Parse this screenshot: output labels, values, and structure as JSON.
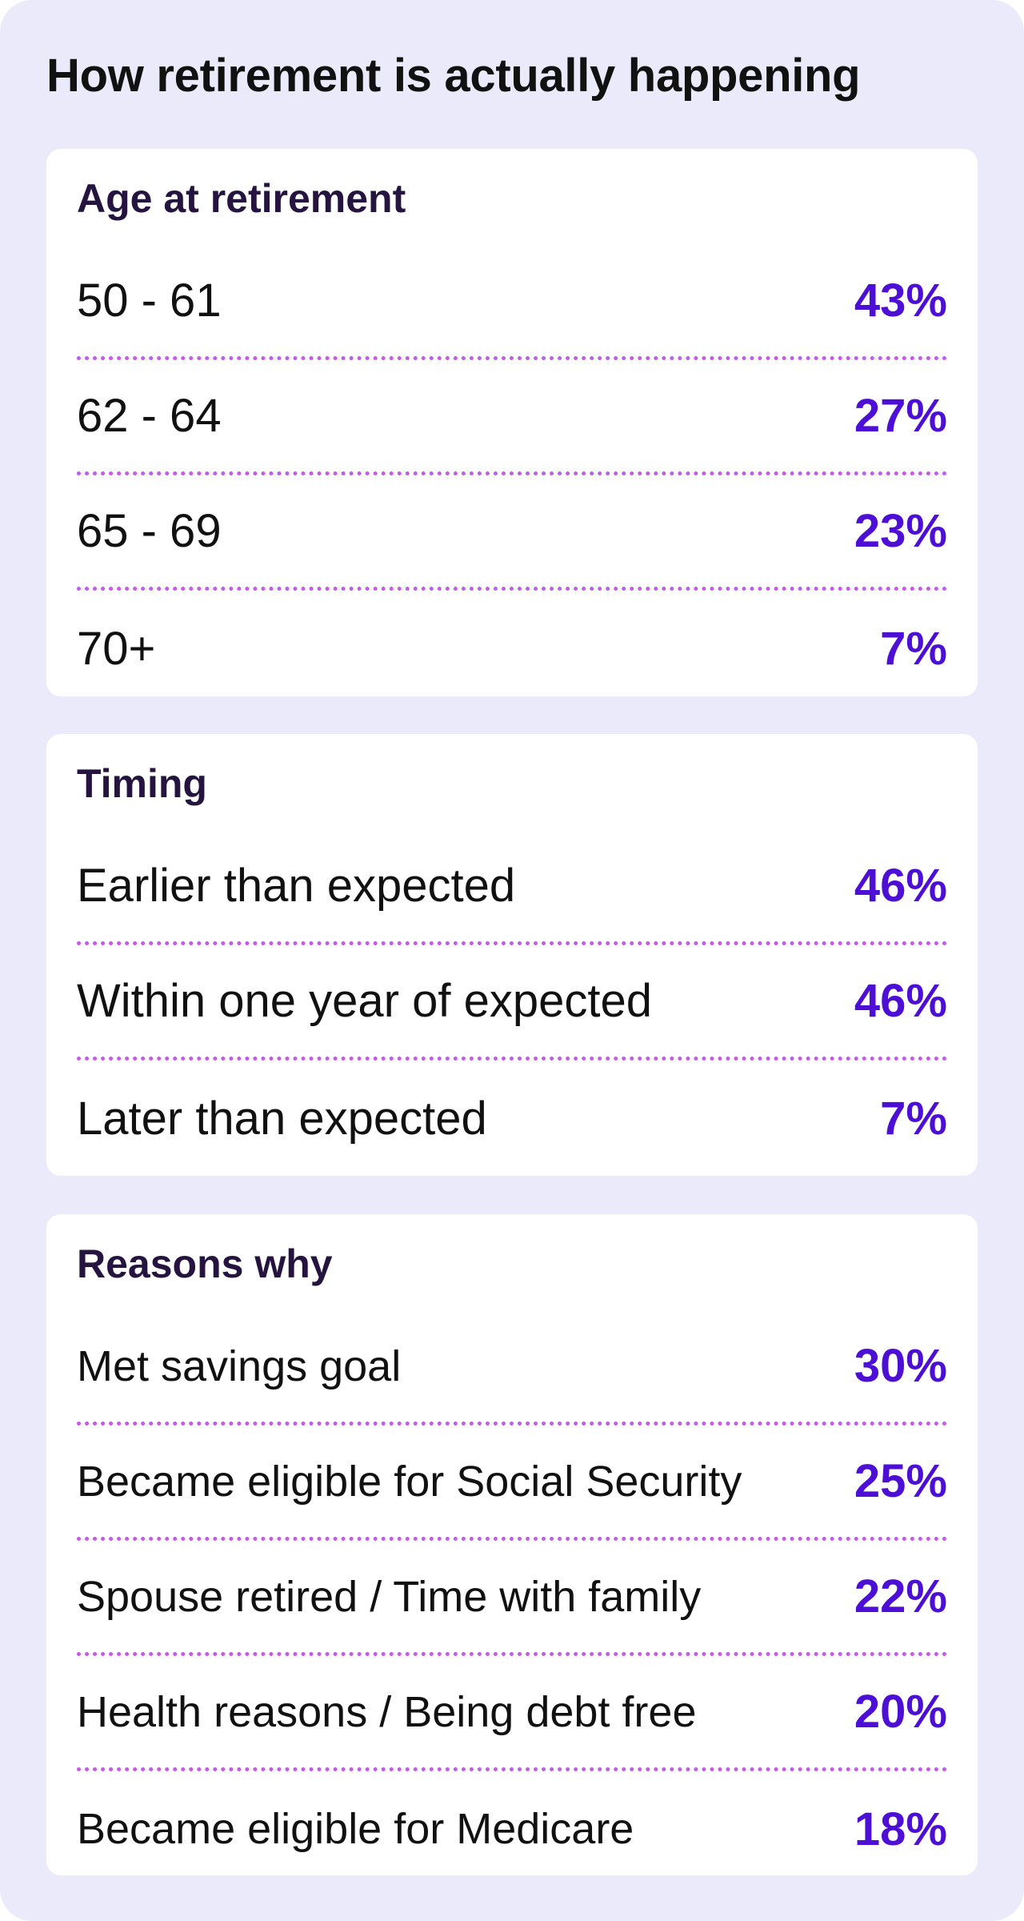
{
  "title": "How retirement is actually happening",
  "colors": {
    "background": "#ebeafa",
    "card": "#ffffff",
    "accent": "#4d0fd6",
    "divider": "#c45ae6"
  },
  "sections": [
    {
      "title": "Age at retirement",
      "rows": [
        {
          "label": "50 - 61",
          "value": "43%"
        },
        {
          "label": "62 - 64",
          "value": "27%"
        },
        {
          "label": "65 - 69",
          "value": "23%"
        },
        {
          "label": "70+",
          "value": "7%"
        }
      ]
    },
    {
      "title": "Timing",
      "rows": [
        {
          "label": "Earlier than expected",
          "value": "46%"
        },
        {
          "label": "Within one year of expected",
          "value": "46%"
        },
        {
          "label": "Later than expected",
          "value": "7%"
        }
      ]
    },
    {
      "title": "Reasons why",
      "rows": [
        {
          "label": "Met savings goal",
          "value": "30%"
        },
        {
          "label": "Became eligible for Social Security",
          "value": "25%"
        },
        {
          "label": "Spouse retired / Time with family",
          "value": "22%"
        },
        {
          "label": "Health reasons / Being debt free",
          "value": "20%"
        },
        {
          "label": "Became eligible for Medicare",
          "value": "18%"
        }
      ]
    }
  ]
}
